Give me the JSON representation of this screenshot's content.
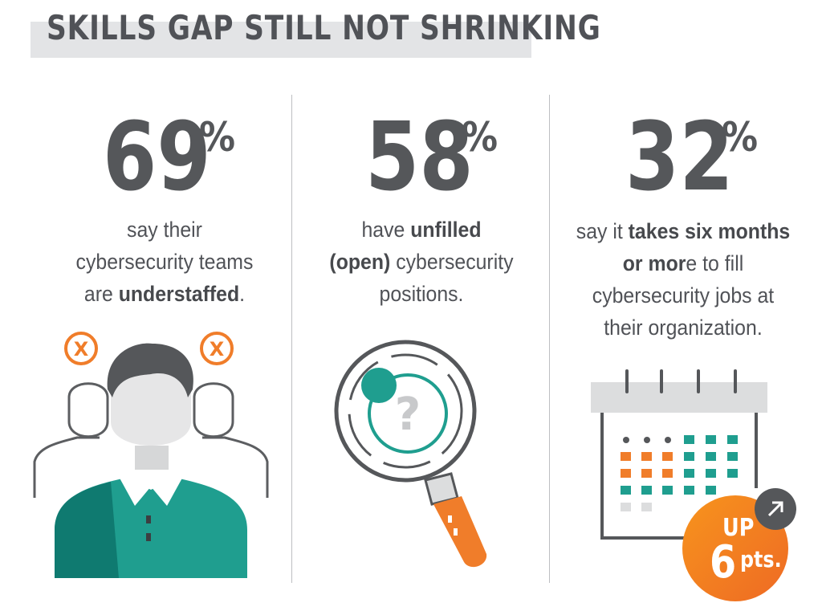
{
  "header": {
    "title": "SKILLS GAP STILL NOT SHRINKING"
  },
  "stats": [
    {
      "value": "69",
      "unit": "%",
      "lines": [
        [
          {
            "t": "say their",
            "b": false
          }
        ],
        [
          {
            "t": "cybersecurity teams",
            "b": false
          }
        ],
        [
          {
            "t": "are ",
            "b": false
          },
          {
            "t": "understaffed",
            "b": true
          },
          {
            "t": ".",
            "b": false
          }
        ]
      ],
      "icon": "understaffed-team-icon"
    },
    {
      "value": "58",
      "unit": "%",
      "lines": [
        [
          {
            "t": "have ",
            "b": false
          },
          {
            "t": "unfilled",
            "b": true
          }
        ],
        [
          {
            "t": "(open)",
            "b": true
          },
          {
            "t": " cybersecurity",
            "b": false
          }
        ],
        [
          {
            "t": "positions.",
            "b": false
          }
        ]
      ],
      "icon": "magnifying-glass-question-icon"
    },
    {
      "value": "32",
      "unit": "%",
      "lines": [
        [
          {
            "t": "say it ",
            "b": false
          },
          {
            "t": "takes six months",
            "b": true
          }
        ],
        [
          {
            "t": "or mor",
            "b": true
          },
          {
            "t": "e to fill",
            "b": false
          }
        ],
        [
          {
            "t": "cybersecurity jobs at",
            "b": false
          }
        ],
        [
          {
            "t": "their organization.",
            "b": false
          }
        ]
      ],
      "icon": "calendar-icon"
    }
  ],
  "badge": {
    "line1": "UP",
    "number": "6",
    "unit": "pts.",
    "icon": "arrow-up-right-icon"
  },
  "x_marks": [
    "X",
    "X"
  ],
  "question_mark": "?",
  "colors": {
    "teal": "#1f9e8f",
    "teal_dark": "#0f7a70",
    "orange": "#f07d2a",
    "gray_dark": "#55575a",
    "gray_light": "#dcddde",
    "gray_band": "#e3e4e6"
  }
}
